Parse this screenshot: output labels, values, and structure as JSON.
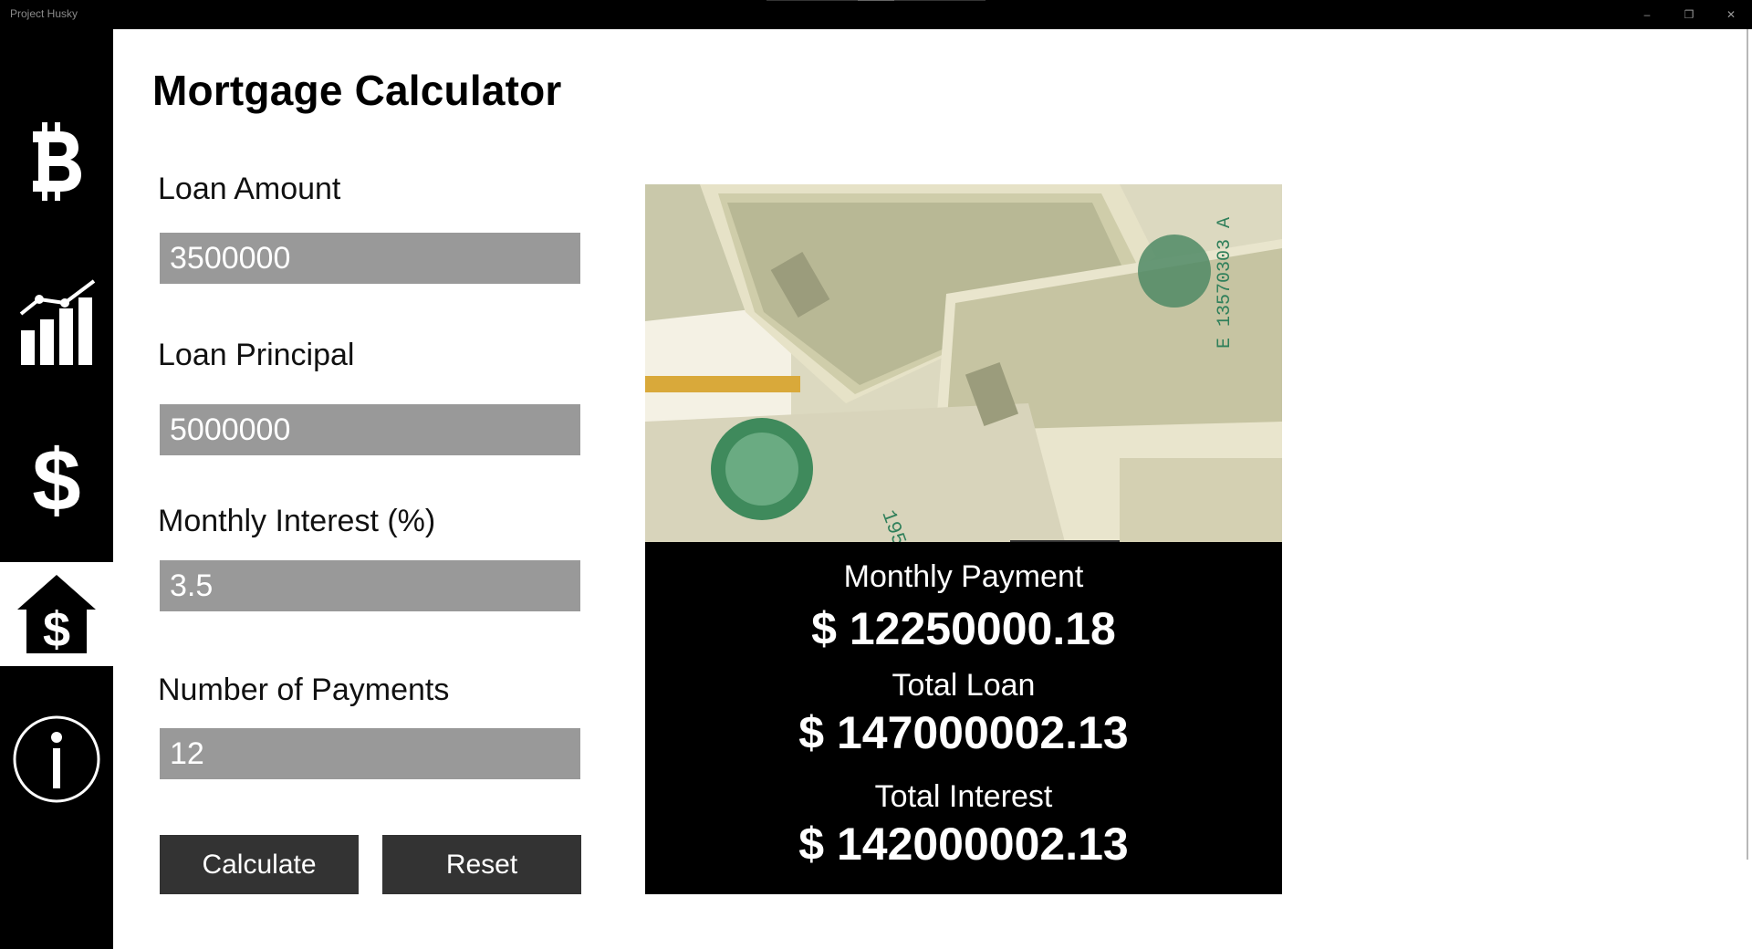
{
  "window": {
    "title": "Project Husky",
    "controls": {
      "minimize": "–",
      "restore": "❐",
      "close": "✕"
    }
  },
  "sidebar": {
    "items": [
      {
        "name": "bitcoin",
        "icon": "bitcoin-icon",
        "active": false
      },
      {
        "name": "stocks",
        "icon": "chart-icon",
        "active": false
      },
      {
        "name": "currency",
        "icon": "dollar-icon",
        "active": false
      },
      {
        "name": "mortgage",
        "icon": "house-dollar-icon",
        "active": true
      },
      {
        "name": "about",
        "icon": "info-icon",
        "active": false
      }
    ]
  },
  "main": {
    "title": "Mortgage Calculator",
    "fields": {
      "loan_amount": {
        "label": "Loan Amount",
        "value": "3500000"
      },
      "loan_principal": {
        "label": "Loan Principal",
        "value": "5000000"
      },
      "monthly_interest": {
        "label": "Monthly Interest (%)",
        "value": "3.5"
      },
      "num_payments": {
        "label": "Number of Payments",
        "value": "12"
      }
    },
    "buttons": {
      "calculate": "Calculate",
      "reset": "Reset"
    },
    "results": {
      "monthly_payment_label": "Monthly Payment",
      "monthly_payment_value": "$ 12250000.18",
      "total_loan_label": "Total Loan",
      "total_loan_value": "$ 147000002.13",
      "total_interest_label": "Total Interest",
      "total_interest_value": "$ 142000002.13"
    }
  },
  "colors": {
    "sidebar_bg": "#000000",
    "input_bg": "#999999",
    "button_bg": "#333333",
    "results_bg": "#000000",
    "bill_green": "#3f8a5c"
  }
}
